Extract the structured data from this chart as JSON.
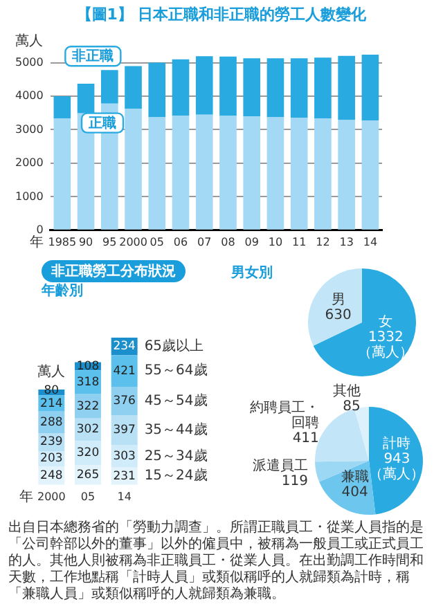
{
  "chart_data": [
    {
      "type": "bar",
      "title": "【圖1】 日本正職和非正職的勞工人數變化",
      "ylabel": "萬人",
      "xlabel": "年",
      "categories": [
        "1985",
        "90",
        "95",
        "2000",
        "05",
        "06",
        "07",
        "08",
        "09",
        "10",
        "11",
        "12",
        "13",
        "14"
      ],
      "series": [
        {
          "name": "正職",
          "color": "#a3d9f5",
          "values": [
            3340,
            3490,
            3780,
            3630,
            3370,
            3420,
            3450,
            3410,
            3400,
            3370,
            3350,
            3340,
            3290,
            3280
          ]
        },
        {
          "name": "非正職",
          "color": "#29abe2",
          "values": [
            660,
            880,
            1000,
            1270,
            1630,
            1680,
            1740,
            1770,
            1730,
            1760,
            1780,
            1810,
            1910,
            1960
          ]
        }
      ],
      "stacked": true,
      "ylim": [
        0,
        5300
      ],
      "yticks": [
        0,
        1000,
        2000,
        3000,
        4000,
        5000
      ],
      "grid": "y",
      "legend": false
    },
    {
      "type": "bar",
      "title": "非正職勞工分布狀況",
      "subtitle": "年齡別",
      "ylabel": "萬人",
      "xlabel": "年",
      "categories": [
        "2000",
        "05",
        "14"
      ],
      "series": [
        {
          "name": "15～24歲",
          "color": "#e2f3fc",
          "values": [
            248,
            265,
            231
          ]
        },
        {
          "name": "25～34歲",
          "color": "#d0ebf9",
          "values": [
            203,
            320,
            303
          ]
        },
        {
          "name": "35～44歲",
          "color": "#b8e1f6",
          "values": [
            239,
            302,
            397
          ]
        },
        {
          "name": "45～54歲",
          "color": "#8fd0f1",
          "values": [
            288,
            322,
            376
          ]
        },
        {
          "name": "55～64歲",
          "color": "#5cc0ec",
          "values": [
            214,
            318,
            421
          ]
        },
        {
          "name": "65歲以上",
          "color": "#1b8fcc",
          "values": [
            80,
            108,
            234
          ]
        }
      ],
      "stacked": true,
      "data_labels": true,
      "tick_labels": "x",
      "legend": false,
      "annotations": [
        "出自日本總務省的「勞動力調查」。所謂正職員工・從業人員指的是「公司幹部以外的董事」以外的僱員中，被稱為一般員工或正式員工的人。其他人則被稱為非正職員工・從業人員。在出勤調工作時間和天數，工作地點稱「計時人員」或類似稱呼的人就歸類為計時，稱「兼職人員」或類似稱呼的人就歸類為兼職。"
      ]
    },
    {
      "type": "pie",
      "title": "男女別",
      "categories": [
        "女",
        "男"
      ],
      "values": [
        1332,
        630
      ],
      "colors": [
        "#29abe2",
        "#c2e6f8"
      ],
      "data_labels": true,
      "legend": false,
      "annotations": [
        "（萬人）"
      ]
    },
    {
      "type": "pie",
      "categories": [
        "計時",
        "兼職",
        "派遣員工",
        "約聘員工・回聘",
        "其他"
      ],
      "values": [
        943,
        404,
        119,
        411,
        85
      ],
      "colors": [
        "#29abe2",
        "#6cc6ee",
        "#9cd7f4",
        "#c2e6f8",
        "#dcf1fb"
      ],
      "data_labels": true,
      "legend": false,
      "annotations": [
        "（萬人）"
      ]
    }
  ]
}
